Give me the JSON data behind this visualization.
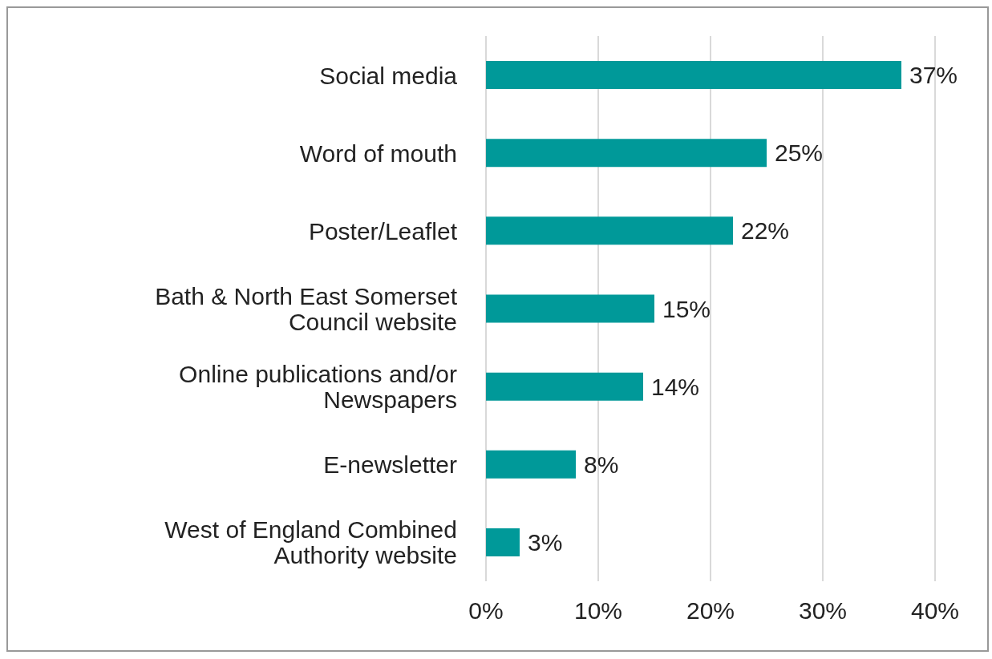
{
  "chart_data": {
    "type": "bar",
    "orientation": "horizontal",
    "categories": [
      "Social media",
      "Word of mouth",
      "Poster/Leaflet",
      "Bath & North East Somerset Council website",
      "Online publications and/or Newspapers",
      "E-newsletter",
      "West of England Combined Authority website"
    ],
    "values": [
      37,
      25,
      22,
      15,
      14,
      8,
      3
    ],
    "value_labels": [
      "37%",
      "25%",
      "22%",
      "15%",
      "14%",
      "8%",
      "3%"
    ],
    "color": "#009999",
    "xlim": [
      0,
      40
    ],
    "xticks": [
      {
        "value": 0,
        "label": "0%"
      },
      {
        "value": 10,
        "label": "10%"
      },
      {
        "value": 20,
        "label": "20%"
      },
      {
        "value": 30,
        "label": "30%"
      },
      {
        "value": 40,
        "label": "40%"
      }
    ],
    "grid": "x",
    "legend": false
  }
}
